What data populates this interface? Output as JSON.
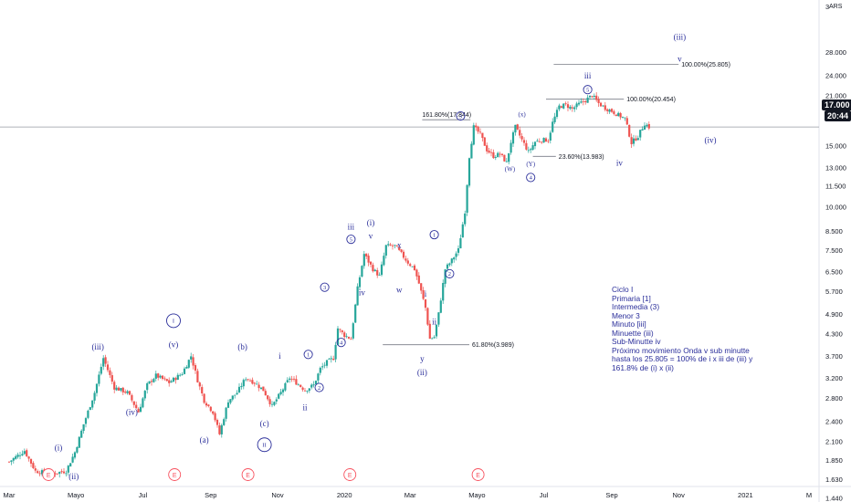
{
  "chart_data": {
    "type": "candlestick",
    "currency": "ARS",
    "last_price": "17.000",
    "countdown": "20:44",
    "y_scale": "log",
    "ylim": [
      1.4,
      33.0
    ],
    "y_ticks": [
      "28.000",
      "24.000",
      "21.000",
      "18.000",
      "15.000",
      "13.000",
      "11.500",
      "10.000",
      "8.500",
      "7.500",
      "6.500",
      "5.700",
      "4.900",
      "4.300",
      "3.700",
      "3.200",
      "2.800",
      "2.400",
      "2.100",
      "1.850",
      "1.630",
      "1.440"
    ],
    "y_top_label": "3",
    "x_ticks": [
      {
        "label": "Mar",
        "t": 0
      },
      {
        "label": "Mayo",
        "t": 61
      },
      {
        "label": "Jul",
        "t": 122
      },
      {
        "label": "Sep",
        "t": 184
      },
      {
        "label": "Nov",
        "t": 245
      },
      {
        "label": "2020",
        "t": 306
      },
      {
        "label": "Mar",
        "t": 366
      },
      {
        "label": "Mayo",
        "t": 427
      },
      {
        "label": "Jul",
        "t": 488
      },
      {
        "label": "Sep",
        "t": 550
      },
      {
        "label": "Nov",
        "t": 611
      },
      {
        "label": "2021",
        "t": 672
      },
      {
        "label": "M",
        "t": 730
      }
    ],
    "series_anchors": [
      [
        0,
        1.83
      ],
      [
        14,
        1.97
      ],
      [
        24,
        1.72
      ],
      [
        38,
        1.69
      ],
      [
        52,
        1.72
      ],
      [
        60,
        1.95
      ],
      [
        68,
        2.35
      ],
      [
        78,
        2.9
      ],
      [
        86,
        3.65
      ],
      [
        96,
        3.0
      ],
      [
        108,
        2.9
      ],
      [
        118,
        2.55
      ],
      [
        126,
        3.05
      ],
      [
        134,
        3.25
      ],
      [
        146,
        3.1
      ],
      [
        158,
        3.3
      ],
      [
        166,
        3.7
      ],
      [
        172,
        3.15
      ],
      [
        178,
        2.75
      ],
      [
        186,
        2.55
      ],
      [
        192,
        2.2
      ],
      [
        200,
        2.75
      ],
      [
        208,
        2.9
      ],
      [
        216,
        3.2
      ],
      [
        224,
        3.1
      ],
      [
        232,
        2.95
      ],
      [
        240,
        2.65
      ],
      [
        248,
        2.9
      ],
      [
        256,
        3.2
      ],
      [
        262,
        3.1
      ],
      [
        270,
        2.95
      ],
      [
        278,
        3.05
      ],
      [
        284,
        3.4
      ],
      [
        290,
        3.55
      ],
      [
        296,
        3.65
      ],
      [
        300,
        4.45
      ],
      [
        306,
        4.25
      ],
      [
        312,
        4.15
      ],
      [
        318,
        5.8
      ],
      [
        324,
        7.3
      ],
      [
        332,
        6.6
      ],
      [
        338,
        6.3
      ],
      [
        344,
        7.7
      ],
      [
        352,
        7.7
      ],
      [
        358,
        7.3
      ],
      [
        364,
        6.9
      ],
      [
        370,
        6.6
      ],
      [
        374,
        6.0
      ],
      [
        380,
        5.1
      ],
      [
        384,
        4.15
      ],
      [
        388,
        4.2
      ],
      [
        392,
        4.9
      ],
      [
        398,
        6.6
      ],
      [
        404,
        7.0
      ],
      [
        410,
        7.5
      ],
      [
        416,
        9.7
      ],
      [
        420,
        14.0
      ],
      [
        424,
        17.0
      ],
      [
        430,
        16.2
      ],
      [
        436,
        14.6
      ],
      [
        442,
        14.0
      ],
      [
        448,
        14.2
      ],
      [
        454,
        13.4
      ],
      [
        458,
        15.4
      ],
      [
        462,
        17.0
      ],
      [
        468,
        15.6
      ],
      [
        474,
        14.4
      ],
      [
        480,
        15.4
      ],
      [
        486,
        15.6
      ],
      [
        492,
        15.6
      ],
      [
        496,
        17.5
      ],
      [
        502,
        19.5
      ],
      [
        508,
        19.7
      ],
      [
        514,
        19.2
      ],
      [
        520,
        19.8
      ],
      [
        526,
        20.3
      ],
      [
        532,
        21.0
      ],
      [
        538,
        19.9
      ],
      [
        544,
        19.3
      ],
      [
        550,
        18.9
      ],
      [
        556,
        18.4
      ],
      [
        562,
        18.0
      ],
      [
        568,
        15.3
      ],
      [
        574,
        16.0
      ],
      [
        580,
        17.4
      ],
      [
        584,
        17.0
      ]
    ],
    "levels": [
      {
        "label": "100.00%(25.805)",
        "price": 25.805,
        "t_from": 497,
        "t_to": 611
      },
      {
        "label": "100.00%(20.454)",
        "price": 20.454,
        "t_from": 490,
        "t_to": 561
      },
      {
        "label": "161.80%(17.844)",
        "price": 17.844,
        "t_from": 377,
        "t_to": 421
      },
      {
        "label": "23.60%(13.983)",
        "price": 13.983,
        "t_from": 478,
        "t_to": 499
      },
      {
        "label": "61.80%(3.989)",
        "price": 3.989,
        "t_from": 341,
        "t_to": 420
      }
    ],
    "wave_labels": [
      {
        "text": "(iii)",
        "t": 612,
        "p": 31.0
      },
      {
        "text": "v",
        "t": 612,
        "p": 26.8
      },
      {
        "text": "iii",
        "t": 528,
        "p": 23.9
      },
      {
        "text": "5",
        "t": 528,
        "p": 21.8,
        "shape": "circle"
      },
      {
        "text": "(x)",
        "t": 468,
        "p": 18.5,
        "size": 7
      },
      {
        "text": "3",
        "t": 412,
        "p": 18.3,
        "shape": "circle"
      },
      {
        "text": "iv",
        "t": 557,
        "p": 13.4
      },
      {
        "text": "(iv)",
        "t": 640,
        "p": 15.6
      },
      {
        "text": "(Y)",
        "t": 476,
        "p": 13.3,
        "size": 7
      },
      {
        "text": "(W)",
        "t": 457,
        "p": 12.85,
        "size": 7
      },
      {
        "text": "4",
        "t": 476,
        "p": 12.15,
        "shape": "circle"
      },
      {
        "text": "(i)",
        "t": 330,
        "p": 9.0
      },
      {
        "text": "v",
        "t": 330,
        "p": 8.25
      },
      {
        "text": "iii",
        "t": 312,
        "p": 8.75
      },
      {
        "text": "5",
        "t": 312,
        "p": 8.05,
        "shape": "circle"
      },
      {
        "text": "x",
        "t": 356,
        "p": 7.75
      },
      {
        "text": "1",
        "t": 388,
        "p": 8.3,
        "shape": "circle"
      },
      {
        "text": "2",
        "t": 402,
        "p": 6.4,
        "shape": "circle"
      },
      {
        "text": "iv",
        "t": 322,
        "p": 5.65
      },
      {
        "text": "w",
        "t": 356,
        "p": 5.75
      },
      {
        "text": "i",
        "t": 380,
        "p": 5.6
      },
      {
        "text": "ii",
        "t": 388,
        "p": 4.65
      },
      {
        "text": "3",
        "t": 288,
        "p": 5.85,
        "shape": "circle"
      },
      {
        "text": "4",
        "t": 303,
        "p": 4.05,
        "shape": "circle"
      },
      {
        "text": "y",
        "t": 377,
        "p": 3.64
      },
      {
        "text": "(ii)",
        "t": 377,
        "p": 3.32
      },
      {
        "text": "1",
        "t": 273,
        "p": 3.74,
        "shape": "circle"
      },
      {
        "text": "i",
        "t": 247,
        "p": 3.7
      },
      {
        "text": "2",
        "t": 283,
        "p": 3.0,
        "shape": "circle"
      },
      {
        "text": "ii",
        "t": 270,
        "p": 2.63
      },
      {
        "text": "I",
        "t": 150,
        "p": 4.68,
        "shape": "circle"
      },
      {
        "text": "(v)",
        "t": 150,
        "p": 4.0
      },
      {
        "text": "(iii)",
        "t": 81,
        "p": 3.94
      },
      {
        "text": "(b)",
        "t": 213,
        "p": 3.94
      },
      {
        "text": "(iv)",
        "t": 112,
        "p": 2.55
      },
      {
        "text": "(c)",
        "t": 233,
        "p": 2.36
      },
      {
        "text": "(a)",
        "t": 178,
        "p": 2.12
      },
      {
        "text": "II",
        "t": 233,
        "p": 2.05,
        "shape": "circle"
      },
      {
        "text": "(i)",
        "t": 45,
        "p": 2.01
      },
      {
        "text": "(ii)",
        "t": 59,
        "p": 1.66
      }
    ],
    "events": [
      {
        "label": "E",
        "t": 36
      },
      {
        "label": "E",
        "t": 151
      },
      {
        "label": "E",
        "t": 218
      },
      {
        "label": "E",
        "t": 311
      },
      {
        "label": "E",
        "t": 428
      }
    ],
    "annotation_lines": [
      "Ciclo I",
      "Primaria [1]",
      "Intermedia (3)",
      "Menor 3",
      "Minuto [iii]",
      "Minuette (iii)",
      "Sub-Minutte iv",
      "Próximo movimiento Onda v sub minutte",
      "hasta los 25.805 = 100% de i x iii de (iii) y",
      "161.8% de (i) x (ii)"
    ],
    "colors": {
      "up": "#26a69a",
      "down": "#ef5350",
      "label": "#2a2e9a",
      "level": "#787b86",
      "axis_text": "#131722",
      "event": "#f7525f"
    }
  }
}
